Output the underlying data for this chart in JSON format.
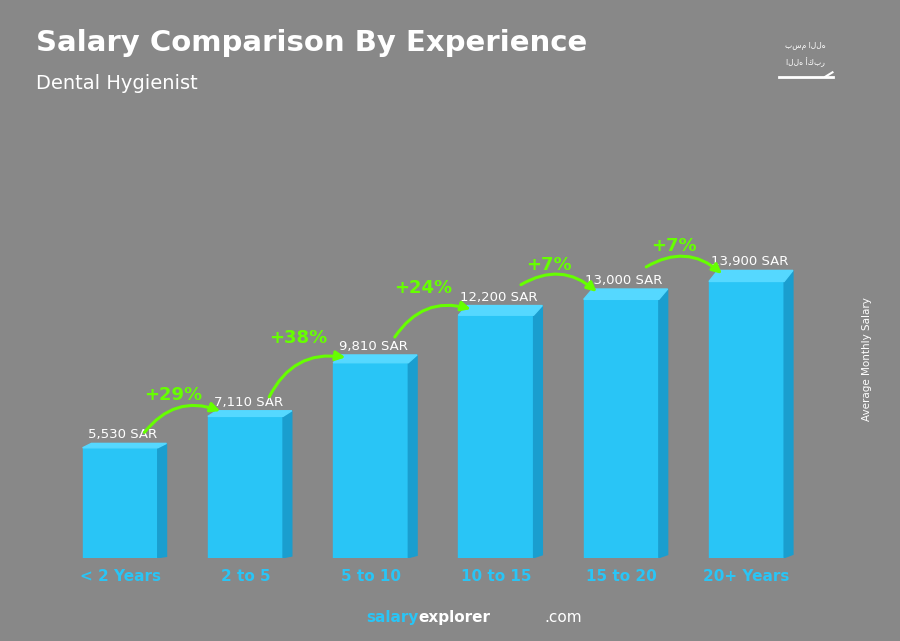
{
  "title": "Salary Comparison By Experience",
  "subtitle": "Dental Hygienist",
  "ylabel": "Average Monthly Salary",
  "categories": [
    "< 2 Years",
    "2 to 5",
    "5 to 10",
    "10 to 15",
    "15 to 20",
    "20+ Years"
  ],
  "values": [
    5530,
    7110,
    9810,
    12200,
    13000,
    13900
  ],
  "value_labels": [
    "5,530 SAR",
    "7,110 SAR",
    "9,810 SAR",
    "12,200 SAR",
    "13,000 SAR",
    "13,900 SAR"
  ],
  "pct_labels": [
    "+29%",
    "+38%",
    "+24%",
    "+7%",
    "+7%"
  ],
  "bar_color_main": "#29c5f6",
  "bar_color_right": "#1a9ecf",
  "bar_color_top": "#55d8ff",
  "pct_color": "#66ff00",
  "value_label_color": "#ffffff",
  "title_color": "#ffffff",
  "subtitle_color": "#ffffff",
  "xtick_color": "#29c5f6",
  "bg_color": "#888888",
  "footer_salary_color": "#29c5f6",
  "footer_explorer_color": "#ffffff",
  "ylabel_color": "#ffffff",
  "flag_bg": "#2d8a2d",
  "ylim_max": 20000,
  "bar_width": 0.6
}
